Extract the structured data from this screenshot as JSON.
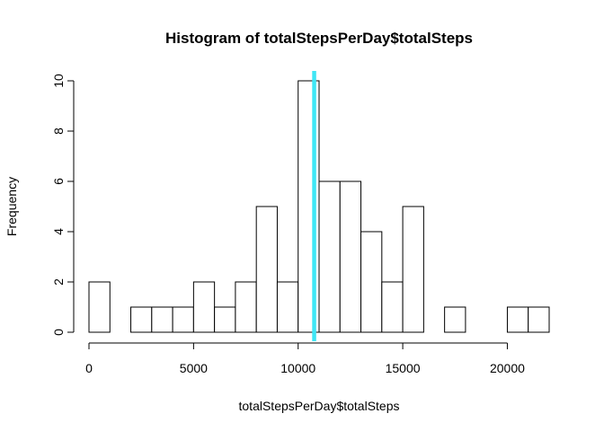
{
  "chart_data": {
    "type": "bar",
    "title": "Histogram of totalStepsPerDay$totalSteps",
    "xlabel": "totalStepsPerDay$totalSteps",
    "ylabel": "Frequency",
    "bin_width": 1000,
    "bins_start": [
      0,
      1000,
      2000,
      3000,
      4000,
      5000,
      6000,
      7000,
      8000,
      9000,
      10000,
      11000,
      12000,
      13000,
      14000,
      15000,
      16000,
      17000,
      18000,
      19000,
      20000,
      21000
    ],
    "values": [
      2,
      0,
      1,
      1,
      1,
      2,
      1,
      2,
      5,
      2,
      10,
      6,
      6,
      4,
      2,
      5,
      0,
      1,
      0,
      0,
      1,
      1
    ],
    "xlim": [
      0,
      22000
    ],
    "ylim": [
      0,
      10
    ],
    "x_ticks": [
      0,
      5000,
      10000,
      15000,
      20000
    ],
    "x_tick_labels": [
      "0",
      "5000",
      "10000",
      "15000",
      "20000"
    ],
    "y_ticks": [
      0,
      2,
      4,
      6,
      8,
      10
    ],
    "y_tick_labels": [
      "0",
      "2",
      "4",
      "6",
      "8",
      "10"
    ],
    "reference_line": {
      "x": 10766,
      "color": "#3ee6f5"
    },
    "bar_fill": "#ffffff",
    "bar_stroke": "#000000",
    "grid": false,
    "legend": "none"
  }
}
